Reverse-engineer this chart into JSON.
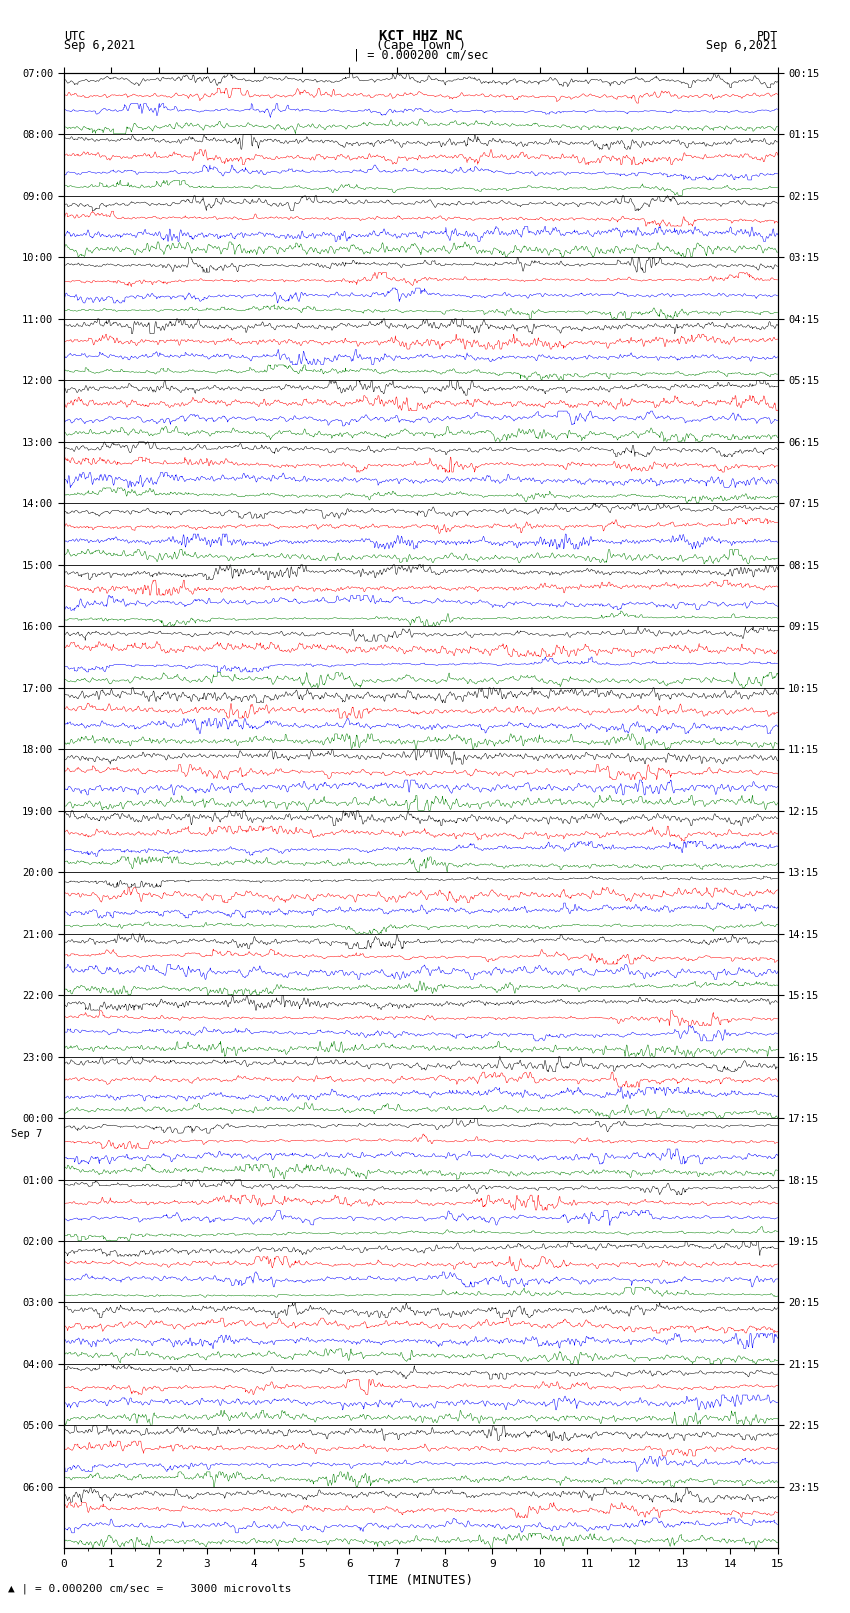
{
  "title_line1": "KCT HHZ NC",
  "title_line2": "(Cape Town )",
  "scale_label": "= 0.000200 cm/sec",
  "left_label_top": "UTC",
  "left_label_date": "Sep 6,2021",
  "right_label_top": "PDT",
  "right_label_date": "Sep 6,2021",
  "bottom_label": "TIME (MINUTES)",
  "bottom_note": "= 0.000200 cm/sec =    3000 microvolts",
  "utc_times": [
    "07:00",
    "08:00",
    "09:00",
    "10:00",
    "11:00",
    "12:00",
    "13:00",
    "14:00",
    "15:00",
    "16:00",
    "17:00",
    "18:00",
    "19:00",
    "20:00",
    "21:00",
    "22:00",
    "23:00",
    "00:00",
    "01:00",
    "02:00",
    "03:00",
    "04:00",
    "05:00",
    "06:00"
  ],
  "pdt_times": [
    "00:15",
    "01:15",
    "02:15",
    "03:15",
    "04:15",
    "05:15",
    "06:15",
    "07:15",
    "08:15",
    "09:15",
    "10:15",
    "11:15",
    "12:15",
    "13:15",
    "14:15",
    "15:15",
    "16:15",
    "17:15",
    "18:15",
    "19:15",
    "20:15",
    "21:15",
    "22:15",
    "23:15"
  ],
  "sep7_row": 17,
  "n_rows": 24,
  "n_cols": 4,
  "colors": [
    "black",
    "red",
    "blue",
    "green"
  ],
  "bg_color": "white",
  "xmin": 0,
  "xmax": 15,
  "figsize": [
    8.5,
    16.13
  ],
  "dpi": 100,
  "noise_seed": 42
}
